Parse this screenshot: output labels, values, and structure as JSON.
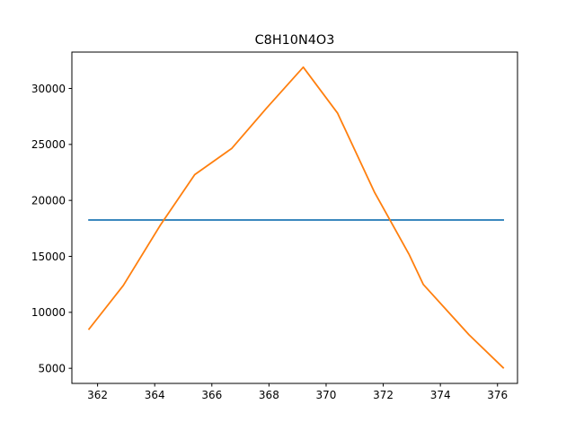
{
  "chart_data": {
    "type": "line",
    "title": "C8H10N4O3",
    "xlabel": "",
    "ylabel": "",
    "xlim": [
      361.1,
      376.7
    ],
    "ylim": [
      3650,
      33250
    ],
    "xticks": [
      362,
      364,
      366,
      368,
      370,
      372,
      374,
      376
    ],
    "yticks": [
      5000,
      10000,
      15000,
      20000,
      25000,
      30000
    ],
    "grid": false,
    "legend": "none",
    "series": [
      {
        "color": "#1f77b4",
        "x": [
          361.7,
          376.2
        ],
        "y": [
          18250,
          18250
        ]
      },
      {
        "color": "#ff7f0e",
        "x": [
          361.7,
          362.9,
          364.2,
          365.4,
          366.7,
          367.9,
          369.2,
          370.4,
          371.7,
          372.9,
          373.4,
          375.0,
          376.2
        ],
        "y": [
          8500,
          12400,
          17800,
          22300,
          24650,
          28200,
          31900,
          27800,
          20700,
          15200,
          12500,
          8000,
          5050
        ]
      }
    ]
  }
}
